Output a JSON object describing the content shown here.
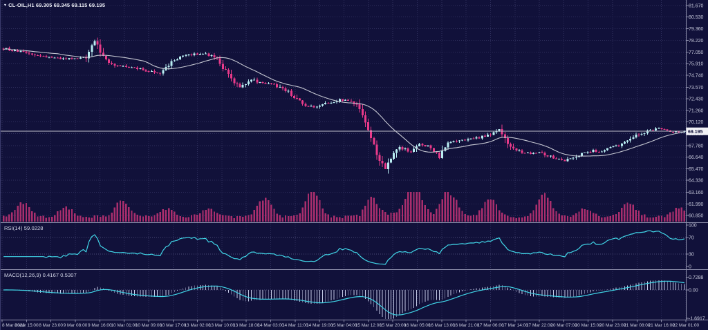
{
  "header": {
    "title": "CL-OIL,H1 69.305 69.345 69.115 69.195",
    "symbol": "CL-OIL",
    "timeframe": "H1"
  },
  "icons": {
    "symbol_marker": "▾"
  },
  "panes": {
    "rsi": {
      "label": "RSI(14) 59.0228"
    },
    "macd": {
      "label": "MACD(12,26,9) 0.4167 0.5307"
    }
  },
  "colors": {
    "background": "#11113a",
    "grid": "#2e2e5c",
    "level_line": "#4a4a78",
    "bull": "#b9edf2",
    "bear": "#e93a8a",
    "volume": "#aa2e6d",
    "ma": "#c6c8d2",
    "rsi_line": "#41d6e8",
    "macd_signal": "#41d6e8",
    "macd_hist": "#c6cce8",
    "separator": "#8f90ac",
    "axis_text": "#c9cbdd",
    "price_line": "#bfc0cc",
    "badge_bg": "#f2f2f6",
    "badge_text": "#11113a"
  },
  "chart_data": {
    "type": "candlestick",
    "title": "CL-OIL,H1",
    "symbol": "CL-OIL",
    "timeframe": "H1",
    "current_bar": {
      "open": 69.305,
      "high": 69.345,
      "low": 69.115,
      "close": 69.195
    },
    "current_price": 69.195,
    "current_price_label": "69.195",
    "n_bars": 240,
    "price_path": [
      [
        0,
        77.4
      ],
      [
        7,
        77.0
      ],
      [
        14,
        76.6
      ],
      [
        21,
        76.35
      ],
      [
        29,
        76.5
      ],
      [
        32,
        78.15
      ],
      [
        36,
        76.2
      ],
      [
        40,
        75.7
      ],
      [
        48,
        75.35
      ],
      [
        55,
        75.0
      ],
      [
        60,
        76.3
      ],
      [
        65,
        76.8
      ],
      [
        70,
        76.9
      ],
      [
        74,
        76.6
      ],
      [
        76,
        75.9
      ],
      [
        80,
        74.3
      ],
      [
        83,
        73.6
      ],
      [
        87,
        74.35
      ],
      [
        90,
        74.0
      ],
      [
        95,
        73.8
      ],
      [
        99,
        73.3
      ],
      [
        103,
        72.4
      ],
      [
        106,
        71.7
      ],
      [
        110,
        71.6
      ],
      [
        114,
        72.0
      ],
      [
        118,
        72.3
      ],
      [
        122,
        72.2
      ],
      [
        125,
        71.5
      ],
      [
        127,
        70.2
      ],
      [
        129,
        68.6
      ],
      [
        132,
        66.3
      ],
      [
        134,
        65.4
      ],
      [
        135,
        66.1
      ],
      [
        139,
        67.6
      ],
      [
        143,
        67.2
      ],
      [
        146,
        67.9
      ],
      [
        150,
        67.6
      ],
      [
        153,
        66.6
      ],
      [
        156,
        68.0
      ],
      [
        160,
        68.3
      ],
      [
        163,
        68.4
      ],
      [
        167,
        68.6
      ],
      [
        171,
        68.9
      ],
      [
        174,
        69.3
      ],
      [
        177,
        68.0
      ],
      [
        180,
        67.3
      ],
      [
        184,
        67.0
      ],
      [
        188,
        67.2
      ],
      [
        191,
        66.8
      ],
      [
        195,
        66.4
      ],
      [
        197,
        66.3
      ],
      [
        200,
        66.6
      ],
      [
        203,
        67.0
      ],
      [
        207,
        67.3
      ],
      [
        209,
        67.2
      ],
      [
        213,
        67.6
      ],
      [
        217,
        67.9
      ],
      [
        219,
        68.4
      ],
      [
        223,
        68.9
      ],
      [
        226,
        69.2
      ],
      [
        230,
        69.45
      ],
      [
        233,
        69.3
      ],
      [
        236,
        69.15
      ],
      [
        239,
        69.195
      ]
    ],
    "price_axis": {
      "ticks": [
        "81.670",
        "80.530",
        "79.360",
        "78.220",
        "77.050",
        "75.910",
        "74.740",
        "73.570",
        "72.430",
        "71.260",
        "70.120",
        "68.950",
        "67.780",
        "66.640",
        "65.470",
        "64.330",
        "63.160",
        "61.990",
        "60.850"
      ]
    },
    "time_axis": {
      "ticks": [
        "8 Mar 2023",
        "8 Mar 15:00",
        "8 Mar 23:00",
        "9 Mar 08:00",
        "9 Mar 16:00",
        "10 Mar 01:00",
        "10 Mar 09:00",
        "10 Mar 17:00",
        "13 Mar 02:00",
        "13 Mar 10:00",
        "13 Mar 18:00",
        "14 Mar 03:00",
        "14 Mar 11:00",
        "14 Mar 19:00",
        "15 Mar 04:00",
        "15 Mar 12:00",
        "15 Mar 20:00",
        "16 Mar 05:00",
        "16 Mar 13:00",
        "16 Mar 21:00",
        "17 Mar 06:00",
        "17 Mar 14:00",
        "17 Mar 22:00",
        "20 Mar 07:00",
        "20 Mar 15:00",
        "20 Mar 23:00",
        "21 Mar 08:00",
        "21 Mar 16:00",
        "22 Mar 01:00"
      ]
    },
    "indicators": {
      "ma": {
        "period": 20
      },
      "rsi": {
        "period": 14,
        "value": 59.0228,
        "levels": [
          100,
          70,
          30,
          0
        ],
        "level_labels": [
          "100",
          "70",
          "30",
          "0"
        ]
      },
      "macd": {
        "fast": 12,
        "slow": 26,
        "signal": 9,
        "value": 0.4167,
        "signal_value": 0.5307,
        "axis_ticks": [
          "0.7288",
          "0.00",
          "-1.6917"
        ],
        "axis_values": [
          0.7288,
          0.0,
          -1.6917
        ]
      }
    }
  }
}
